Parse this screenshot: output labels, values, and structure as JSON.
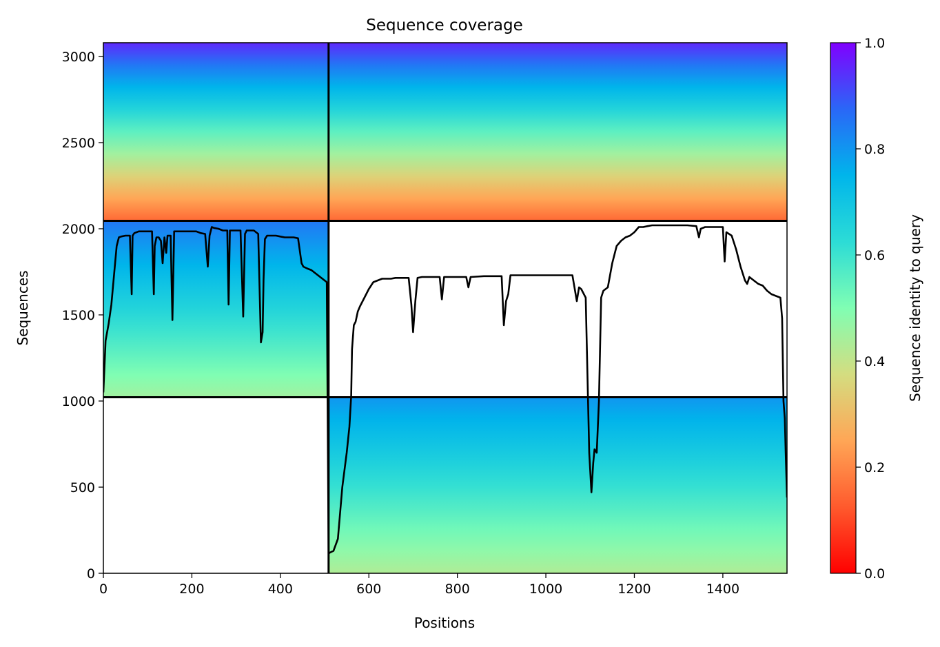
{
  "chart_data": {
    "type": "heatmap",
    "title": "Sequence coverage",
    "xlabel": "Positions",
    "ylabel": "Sequences",
    "xlim": [
      0,
      1545
    ],
    "ylim": [
      0,
      3080
    ],
    "x_ticks": [
      "0",
      "200",
      "400",
      "600",
      "800",
      "1000",
      "1200",
      "1400"
    ],
    "y_ticks": [
      "0",
      "500",
      "1000",
      "1500",
      "2000",
      "2500",
      "3000"
    ],
    "grid": false,
    "colorbar": {
      "label": "Sequence identity to query",
      "range": [
        0,
        1
      ],
      "ticks": [
        "0.0",
        "0.2",
        "0.4",
        "0.6",
        "0.8",
        "1.0"
      ],
      "colormap": "rainbow_r"
    },
    "block_boundaries": {
      "x": [
        509
      ],
      "y": [
        1022,
        2046
      ]
    },
    "blocks": [
      {
        "x": [
          0,
          509
        ],
        "y": [
          2046,
          3080
        ],
        "identity_top": 0.95,
        "identity_bottom": 0.15
      },
      {
        "x": [
          509,
          1545
        ],
        "y": [
          2046,
          3080
        ],
        "identity_top": 0.95,
        "identity_bottom": 0.15
      },
      {
        "x": [
          0,
          509
        ],
        "y": [
          1022,
          2046
        ],
        "identity_top": 0.85,
        "identity_bottom": 0.45
      },
      {
        "x": [
          509,
          1545
        ],
        "y": [
          0,
          1022
        ],
        "identity_top": 0.8,
        "identity_bottom": 0.43
      }
    ],
    "series": [
      {
        "kind": "coverage",
        "color": "#000000",
        "x": [
          0,
          5,
          12,
          18,
          25,
          30,
          35,
          40,
          50,
          60,
          64,
          66,
          70,
          80,
          90,
          100,
          110,
          114,
          116,
          120,
          125,
          130,
          134,
          138,
          142,
          145,
          150,
          152,
          156,
          160,
          170,
          180,
          190,
          200,
          210,
          220,
          230,
          236,
          240,
          245,
          250,
          260,
          270,
          280,
          283,
          286,
          290,
          300,
          310,
          316,
          320,
          324,
          330,
          340,
          350,
          356,
          360,
          362,
          365,
          370,
          380,
          390,
          400,
          410,
          420,
          430,
          440,
          448,
          452,
          460,
          470,
          480,
          490,
          500,
          505,
          509,
          512,
          520,
          530,
          540,
          550,
          556,
          560,
          562,
          566,
          570,
          575,
          580,
          590,
          600,
          610,
          620,
          630,
          640,
          650,
          660,
          680,
          690,
          696,
          700,
          705,
          710,
          720,
          740,
          760,
          765,
          770,
          780,
          800,
          820,
          825,
          830,
          860,
          880,
          900,
          905,
          910,
          915,
          920,
          940,
          960,
          980,
          1000,
          1020,
          1040,
          1060,
          1070,
          1075,
          1080,
          1090,
          1098,
          1103,
          1107,
          1110,
          1115,
          1120,
          1125,
          1130,
          1140,
          1150,
          1160,
          1170,
          1180,
          1190,
          1200,
          1210,
          1220,
          1230,
          1240,
          1260,
          1280,
          1300,
          1320,
          1340,
          1346,
          1350,
          1360,
          1380,
          1400,
          1404,
          1408,
          1420,
          1430,
          1440,
          1450,
          1455,
          1460,
          1470,
          1480,
          1490,
          1500,
          1510,
          1520,
          1530,
          1534,
          1537,
          1540,
          1542,
          1545
        ],
        "y": [
          1050,
          1350,
          1450,
          1560,
          1760,
          1900,
          1950,
          1955,
          1960,
          1960,
          1620,
          1960,
          1975,
          1985,
          1985,
          1985,
          1985,
          1620,
          1900,
          1950,
          1950,
          1930,
          1800,
          1950,
          1860,
          1960,
          1960,
          1960,
          1470,
          1985,
          1985,
          1985,
          1985,
          1985,
          1985,
          1975,
          1970,
          1780,
          1960,
          2010,
          2005,
          2000,
          1990,
          1990,
          1560,
          1990,
          1990,
          1990,
          1990,
          1490,
          1970,
          1990,
          1990,
          1990,
          1970,
          1340,
          1400,
          1700,
          1940,
          1960,
          1960,
          1960,
          1955,
          1950,
          1950,
          1950,
          1945,
          1800,
          1780,
          1770,
          1760,
          1740,
          1720,
          1700,
          1690,
          115,
          120,
          130,
          200,
          500,
          700,
          850,
          1030,
          1300,
          1440,
          1460,
          1520,
          1550,
          1600,
          1650,
          1690,
          1700,
          1710,
          1710,
          1710,
          1715,
          1715,
          1715,
          1560,
          1400,
          1580,
          1715,
          1720,
          1720,
          1720,
          1590,
          1720,
          1720,
          1720,
          1720,
          1660,
          1720,
          1725,
          1725,
          1725,
          1440,
          1580,
          1620,
          1730,
          1730,
          1730,
          1730,
          1730,
          1730,
          1730,
          1730,
          1580,
          1660,
          1650,
          1600,
          700,
          470,
          640,
          720,
          700,
          1000,
          1600,
          1640,
          1660,
          1800,
          1900,
          1930,
          1950,
          1960,
          1980,
          2010,
          2010,
          2015,
          2020,
          2020,
          2020,
          2020,
          2020,
          2015,
          1950,
          2000,
          2010,
          2010,
          2010,
          1810,
          1980,
          1960,
          1880,
          1780,
          1700,
          1680,
          1720,
          1700,
          1680,
          1670,
          1640,
          1620,
          1610,
          1600,
          1480,
          1000,
          900,
          700,
          440
        ]
      }
    ]
  }
}
